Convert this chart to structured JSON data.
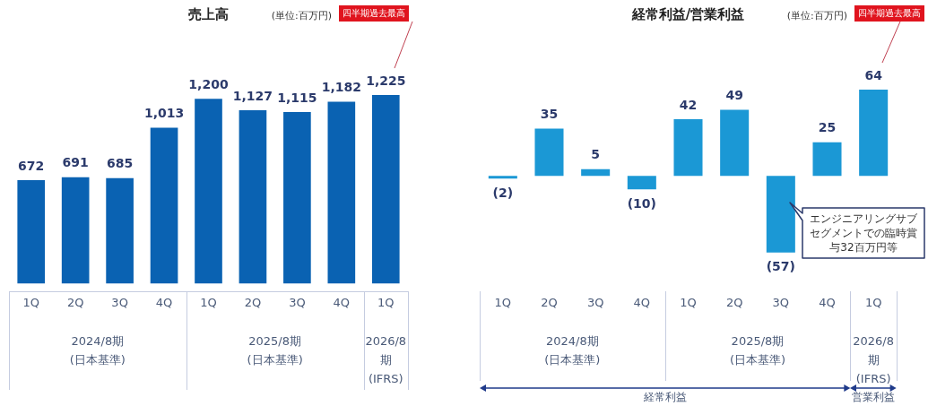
{
  "chart_data": [
    {
      "type": "bar",
      "title": "売上高",
      "categories": [
        "1Q",
        "2Q",
        "3Q",
        "4Q",
        "1Q",
        "2Q",
        "3Q",
        "4Q",
        "1Q"
      ],
      "values": [
        672,
        691,
        685,
        1013,
        1200,
        1127,
        1115,
        1182,
        1225
      ],
      "color": "#0a62b2",
      "value_labels": [
        "672",
        "691",
        "685",
        "1,013",
        "1,200",
        "1,127",
        "1,115",
        "1,182",
        "1,225"
      ],
      "annotations": [
        "(単位:百万円)",
        "四半期過去最高",
        "2024/8期\n(日本基準)",
        "2025/8期\n(日本基準)",
        "2026/8\n期\n(IFRS)"
      ]
    },
    {
      "type": "bar",
      "title": "経常利益/営業利益",
      "categories": [
        "1Q",
        "2Q",
        "3Q",
        "4Q",
        "1Q",
        "2Q",
        "3Q",
        "4Q",
        "1Q"
      ],
      "values": [
        -2,
        35,
        5,
        -10,
        42,
        49,
        -57,
        25,
        64
      ],
      "color": "#1b98d5",
      "value_labels": [
        "(2)",
        "35",
        "5",
        "(10)",
        "42",
        "49",
        "(57)",
        "25",
        "64"
      ],
      "annotations": [
        "(単位:百万円)",
        "四半期過去最高",
        "エンジニアリングサブセグメントでの臨時賞与32百万円等",
        "2024/8期\n(日本基準)",
        "2025/8期\n(日本基準)",
        "2026/8\n期\n(IFRS)",
        "経常利益",
        "営業利益"
      ]
    }
  ]
}
